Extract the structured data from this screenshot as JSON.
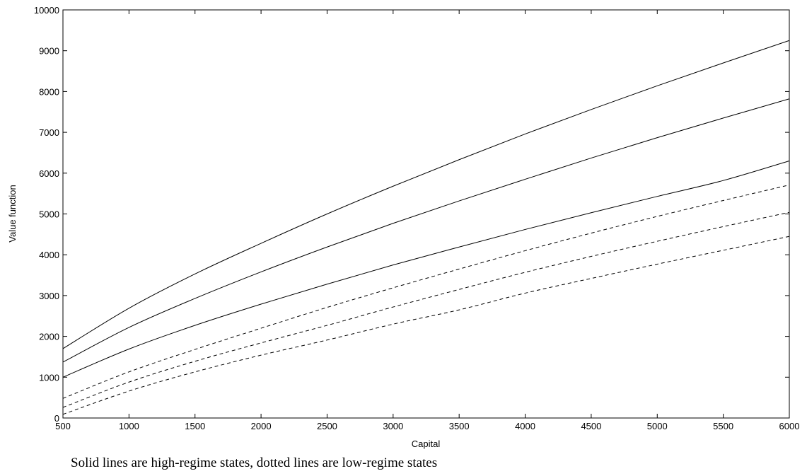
{
  "chart_data": {
    "type": "line",
    "title": "",
    "xlabel": "Capital",
    "ylabel": "Value function",
    "xlim": [
      500,
      6000
    ],
    "ylim": [
      0,
      10000
    ],
    "xticks": [
      500,
      1000,
      1500,
      2000,
      2500,
      3000,
      3500,
      4000,
      4500,
      5000,
      5500,
      6000
    ],
    "yticks": [
      0,
      1000,
      2000,
      3000,
      4000,
      5000,
      6000,
      7000,
      8000,
      9000,
      10000
    ],
    "grid": false,
    "x": [
      500,
      1000,
      1500,
      2000,
      2500,
      3000,
      3500,
      4000,
      4500,
      5000,
      5500,
      6000
    ],
    "series": [
      {
        "style": "solid",
        "values": [
          1700,
          2690,
          3530,
          4280,
          5000,
          5680,
          6330,
          6960,
          7560,
          8140,
          8700,
          9250
        ]
      },
      {
        "style": "solid",
        "values": [
          1370,
          2220,
          2930,
          3580,
          4190,
          4770,
          5320,
          5850,
          6370,
          6870,
          7350,
          7820
        ]
      },
      {
        "style": "solid",
        "values": [
          1000,
          1690,
          2270,
          2790,
          3280,
          3750,
          4190,
          4620,
          5030,
          5430,
          5820,
          6300
        ]
      },
      {
        "style": "dashed",
        "values": [
          480,
          1130,
          1680,
          2200,
          2710,
          3190,
          3650,
          4100,
          4530,
          4940,
          5330,
          5710
        ]
      },
      {
        "style": "dashed",
        "values": [
          260,
          880,
          1390,
          1840,
          2270,
          2720,
          3150,
          3570,
          3960,
          4330,
          4690,
          5040
        ]
      },
      {
        "style": "dashed",
        "values": [
          90,
          660,
          1130,
          1540,
          1910,
          2300,
          2650,
          3060,
          3420,
          3770,
          4110,
          4450
        ]
      }
    ]
  },
  "caption": "Solid lines are high-regime states, dotted lines are low-regime states"
}
